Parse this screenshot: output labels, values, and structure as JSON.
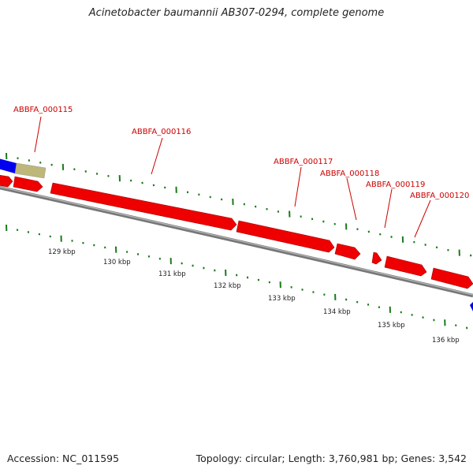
{
  "title": "Acinetobacter baumannii AB307-0294, complete genome",
  "footer": {
    "accession": "Accession: NC_011595",
    "summary": "Topology: circular; Length: 3,760,981 bp; Genes: 3,542"
  },
  "gene_labels": [
    "ABBFA_000115",
    "ABBFA_000116",
    "ABBFA_000117",
    "ABBFA_000118",
    "ABBFA_000119",
    "ABBFA_000120"
  ],
  "kbp_labels": [
    "129 kbp",
    "130 kbp",
    "131 kbp",
    "132 kbp",
    "133 kbp",
    "134 kbp",
    "135 kbp",
    "136 kbp"
  ],
  "colors": {
    "gene": "#ee0000",
    "label": "#cc0000",
    "backbone": "#888888",
    "tick": "#1a7a1a",
    "blue_feature": "#0000ee",
    "khaki_feature": "#bdb77a"
  }
}
